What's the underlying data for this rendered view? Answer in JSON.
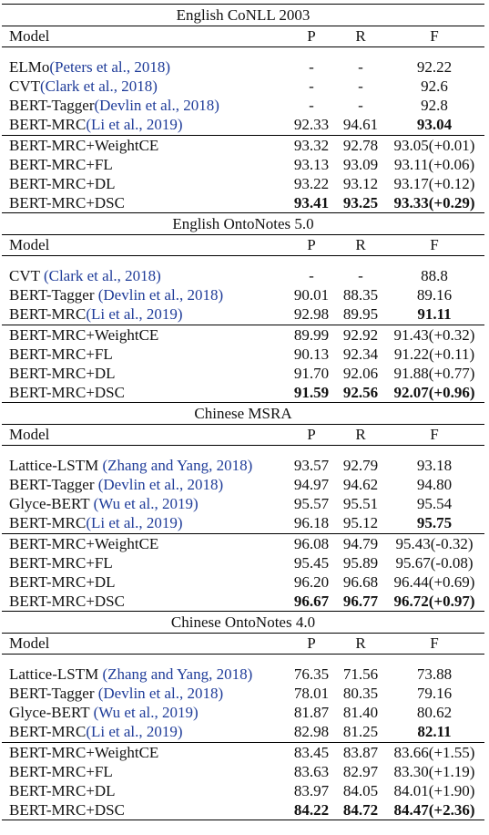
{
  "sections": [
    {
      "title": "English CoNLL 2003",
      "header": {
        "model": "Model",
        "p": "P",
        "r": "R",
        "f": "F"
      },
      "groups": [
        [
          {
            "model": "ELMo",
            "cite": "(Peters et al., 2018)",
            "p": "-",
            "r": "-",
            "f": "92.22"
          },
          {
            "model": "CVT",
            "cite": "(Clark et al., 2018)",
            "p": "-",
            "r": "-",
            "f": "92.6"
          },
          {
            "model": "BERT-Tagger",
            "cite": "(Devlin et al., 2018)",
            "p": "-",
            "r": "-",
            "f": "92.8"
          },
          {
            "model": "BERT-MRC",
            "cite": "(Li et al., 2019)",
            "p": "92.33",
            "r": "94.61",
            "f": "93.04",
            "bold": [
              "f"
            ]
          }
        ],
        [
          {
            "model": "BERT-MRC+WeightCE",
            "p": "93.32",
            "r": "92.78",
            "f": "93.05(+0.01)"
          },
          {
            "model": "BERT-MRC+FL",
            "p": "93.13",
            "r": "93.09",
            "f": "93.11(+0.06)"
          },
          {
            "model": "BERT-MRC+DL",
            "p": "93.22",
            "r": "93.12",
            "f": "93.17(+0.12)"
          },
          {
            "model": "BERT-MRC+DSC",
            "p": "93.41",
            "r": "93.25",
            "f": "93.33(+0.29)",
            "bold": [
              "p",
              "r",
              "f"
            ]
          }
        ]
      ]
    },
    {
      "title": "English OntoNotes 5.0",
      "header": {
        "model": "Model",
        "p": "P",
        "r": "R",
        "f": "F"
      },
      "groups": [
        [
          {
            "model": "CVT",
            "cite": " (Clark et al., 2018)",
            "p": "-",
            "r": "-",
            "f": "88.8"
          },
          {
            "model": "BERT-Tagger",
            "cite": " (Devlin et al., 2018)",
            "p": "90.01",
            "r": "88.35",
            "f": "89.16"
          },
          {
            "model": "BERT-MRC",
            "cite": "(Li et al., 2019)",
            "p": "92.98",
            "r": "89.95",
            "f": "91.11",
            "bold": [
              "f"
            ]
          }
        ],
        [
          {
            "model": "BERT-MRC+WeightCE",
            "p": "89.99",
            "r": "92.92",
            "f": "91.43(+0.32)"
          },
          {
            "model": "BERT-MRC+FL",
            "p": "90.13",
            "r": "92.34",
            "f": "91.22(+0.11)"
          },
          {
            "model": "BERT-MRC+DL",
            "p": "91.70",
            "r": "92.06",
            "f": "91.88(+0.77)"
          },
          {
            "model": "BERT-MRC+DSC",
            "p": "91.59",
            "r": "92.56",
            "f": "92.07(+0.96)",
            "bold": [
              "p",
              "r",
              "f"
            ]
          }
        ]
      ]
    },
    {
      "title": "Chinese MSRA",
      "header": {
        "model": "Model",
        "p": "P",
        "r": "R",
        "f": "F"
      },
      "groups": [
        [
          {
            "model": "Lattice-LSTM",
            "cite": " (Zhang and Yang, 2018)",
            "p": "93.57",
            "r": "92.79",
            "f": "93.18"
          },
          {
            "model": "BERT-Tagger",
            "cite": " (Devlin et al., 2018)",
            "p": "94.97",
            "r": "94.62",
            "f": "94.80"
          },
          {
            "model": "Glyce-BERT",
            "cite": " (Wu et al., 2019)",
            "p": "95.57",
            "r": "95.51",
            "f": "95.54"
          },
          {
            "model": "BERT-MRC",
            "cite": "(Li et al., 2019)",
            "p": "96.18",
            "r": "95.12",
            "f": "95.75",
            "bold": [
              "f"
            ]
          }
        ],
        [
          {
            "model": "BERT-MRC+WeightCE",
            "p": "96.08",
            "r": "94.79",
            "f": "95.43(-0.32)"
          },
          {
            "model": "BERT-MRC+FL",
            "p": "95.45",
            "r": "95.89",
            "f": "95.67(-0.08)"
          },
          {
            "model": "BERT-MRC+DL",
            "p": "96.20",
            "r": "96.68",
            "f": "96.44(+0.69)"
          },
          {
            "model": "BERT-MRC+DSC",
            "p": "96.67",
            "r": "96.77",
            "f": "96.72(+0.97)",
            "bold": [
              "p",
              "r",
              "f"
            ]
          }
        ]
      ]
    },
    {
      "title": "Chinese OntoNotes 4.0",
      "header": {
        "model": "Model",
        "p": "P",
        "r": "R",
        "f": "F"
      },
      "groups": [
        [
          {
            "model": "Lattice-LSTM",
            "cite": " (Zhang and Yang, 2018)",
            "p": "76.35",
            "r": "71.56",
            "f": "73.88"
          },
          {
            "model": "BERT-Tagger",
            "cite": " (Devlin et al., 2018)",
            "p": "78.01",
            "r": "80.35",
            "f": "79.16"
          },
          {
            "model": "Glyce-BERT",
            "cite": " (Wu et al., 2019)",
            "p": "81.87",
            "r": "81.40",
            "f": "80.62"
          },
          {
            "model": "BERT-MRC",
            "cite": "(Li et al., 2019)",
            "p": "82.98",
            "r": "81.25",
            "f": "82.11",
            "bold": [
              "f"
            ]
          }
        ],
        [
          {
            "model": "BERT-MRC+WeightCE",
            "p": "83.45",
            "r": "83.87",
            "f": "83.66(+1.55)"
          },
          {
            "model": "BERT-MRC+FL",
            "p": "83.63",
            "r": "82.97",
            "f": "83.30(+1.19)"
          },
          {
            "model": "BERT-MRC+DL",
            "p": "83.97",
            "r": "84.05",
            "f": "84.01(+1.90)"
          },
          {
            "model": "BERT-MRC+DSC",
            "p": "84.22",
            "r": "84.72",
            "f": "84.47(+2.36)",
            "bold": [
              "p",
              "r",
              "f"
            ]
          }
        ]
      ]
    }
  ]
}
